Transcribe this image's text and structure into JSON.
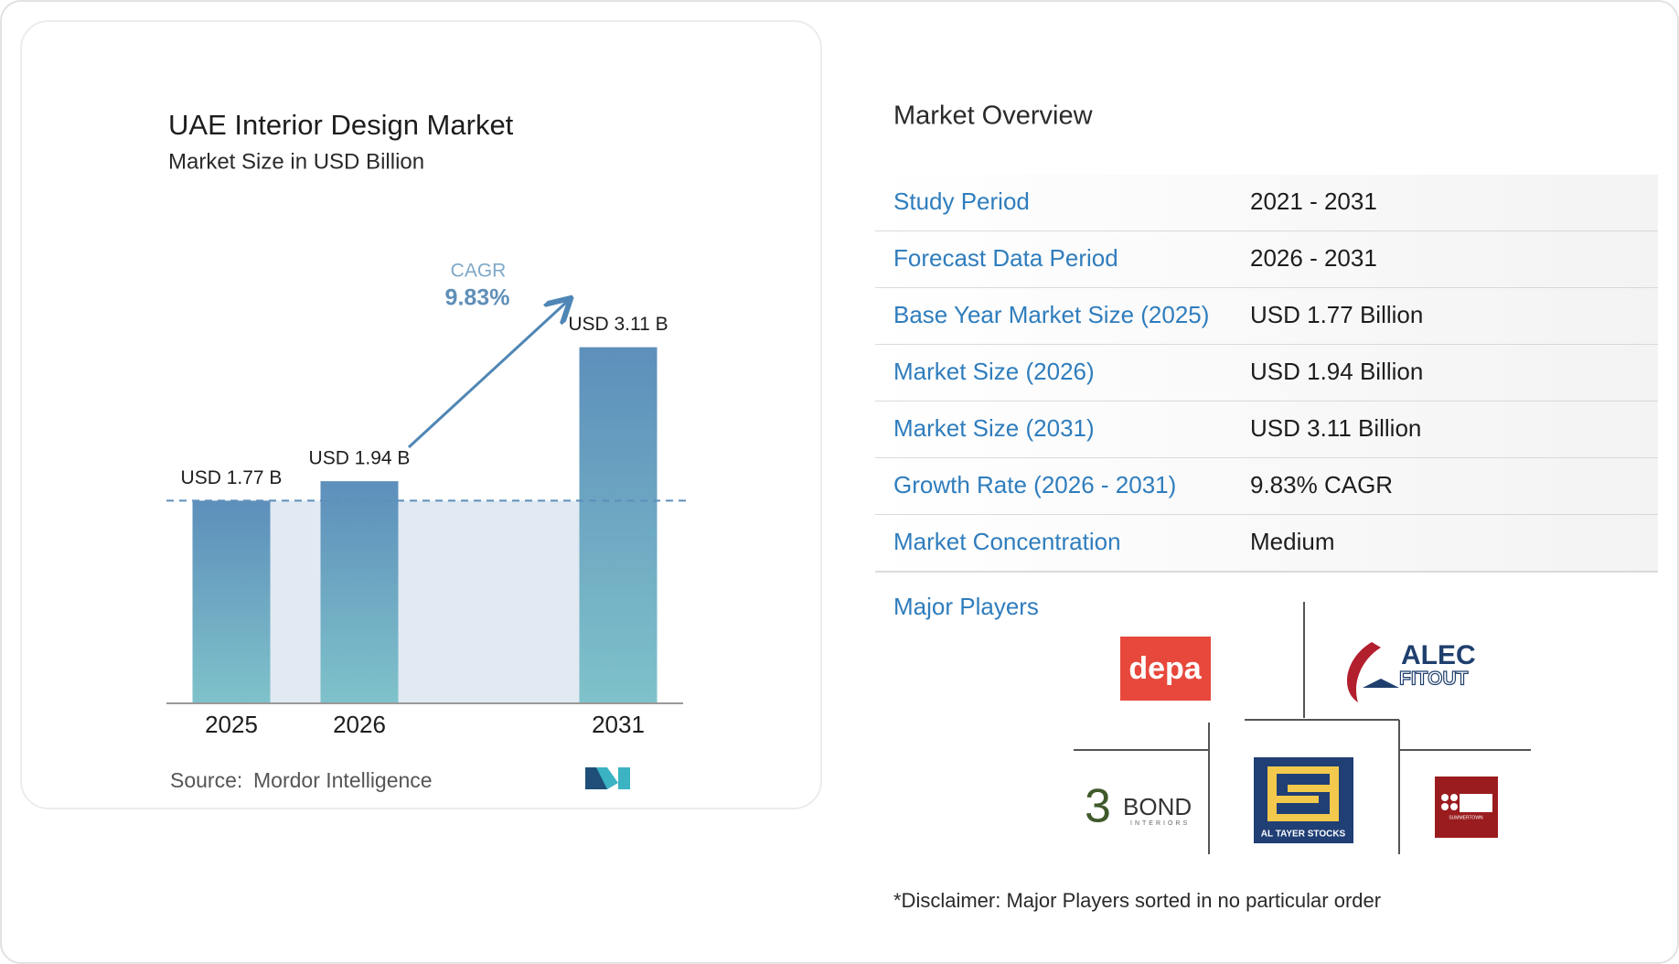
{
  "chart_data": {
    "type": "bar",
    "title": "UAE Interior Design Market",
    "subtitle": "Market Size in USD Billion",
    "categories": [
      "2025",
      "2026",
      "2031"
    ],
    "values": [
      1.77,
      1.94,
      3.11
    ],
    "value_labels": [
      "USD 1.77 B",
      "USD 1.94 B",
      "USD 3.11 B"
    ],
    "annotations": {
      "cagr_label": "CAGR",
      "cagr_value": "9.83%"
    },
    "source_label": "Source:",
    "source": "Mordor Intelligence"
  },
  "overview": {
    "title": "Market Overview",
    "rows": [
      [
        "Study Period",
        "2021 - 2031"
      ],
      [
        "Forecast Data Period",
        "2026 - 2031"
      ],
      [
        "Base Year Market Size (2025)",
        "USD 1.77 Billion"
      ],
      [
        "Market Size (2026)",
        "USD 1.94 Billion"
      ],
      [
        "Market Size (2031)",
        "USD 3.11 Billion"
      ],
      [
        "Growth Rate (2026 - 2031)",
        "9.83% CAGR"
      ],
      [
        "Market Concentration",
        "Medium"
      ]
    ],
    "players_title": "Major Players",
    "players": [
      [
        "depa"
      ],
      [
        "ALEC",
        "FITOUT"
      ],
      [
        "BOND",
        "INTERIORS"
      ],
      [
        "AL TAYER STOCKS"
      ],
      [
        "SUMMERTOWN"
      ]
    ],
    "disclaimer": "*Disclaimer: Major Players sorted in no particular order"
  }
}
